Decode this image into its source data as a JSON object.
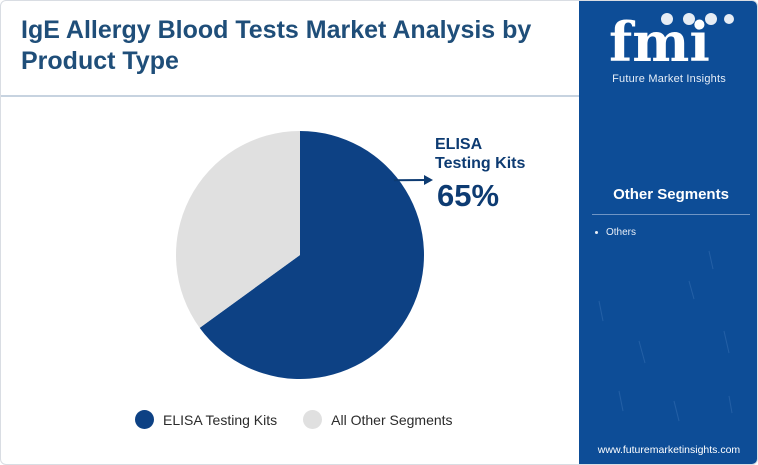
{
  "title": "IgE Allergy Blood Tests Market Analysis by Product Type",
  "chart_data": {
    "type": "pie",
    "categories": [
      "ELISA Testing Kits",
      "All Other Segments"
    ],
    "values": [
      65,
      35
    ],
    "colors": [
      "#0d4184",
      "#e0e0e0"
    ],
    "callout": {
      "category": "ELISA Testing Kits",
      "label": "ELISA Testing Kits",
      "value_text": "65%"
    },
    "legend": {
      "position": "bottom",
      "items": [
        {
          "label": "ELISA Testing Kits",
          "color": "#0d4184"
        },
        {
          "label": "All Other Segments",
          "color": "#e0e0e0"
        }
      ]
    }
  },
  "sidebar": {
    "logo_letters": "fmi",
    "logo_caption": "Future Market Insights",
    "heading": "Other Segments",
    "items": [
      "Others"
    ],
    "footer_url": "www.futuremarketinsights.com",
    "background_color": "#0d4d97"
  }
}
